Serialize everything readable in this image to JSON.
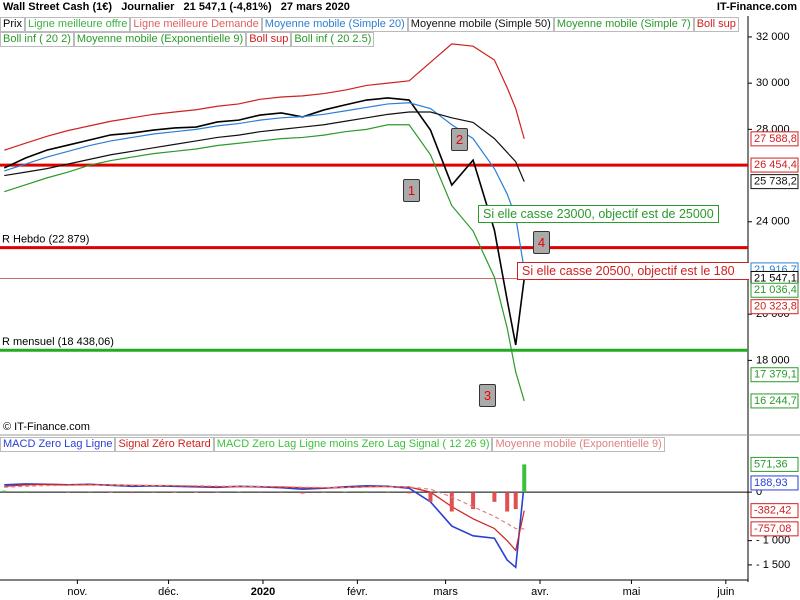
{
  "header": {
    "instrument": "Wall Street Cash (1€)",
    "period": "Journalier",
    "price": "21 547,1 (-4,81%)",
    "date": "27 mars 2020",
    "site": "IT-Finance.com"
  },
  "legend_extra": [
    {
      "name": "Ligne meilleure offre",
      "color": "#3cb043"
    },
    {
      "name": "Ligne meilleure Demande",
      "color": "#e06060"
    },
    {
      "name": "Moyenne mobile (Simple 7)",
      "color": "#2a9a2a"
    },
    {
      "name": "Boll inf ( 20 2)",
      "color": "#2a9a2a"
    },
    {
      "name": "Moyenne mobile (Exponentielle 9)",
      "color": "#2a9a2a"
    },
    {
      "name": "Boll sup",
      "color": "#d02020"
    }
  ],
  "annotations": [
    "1",
    "2",
    "3",
    "4",
    "Si elle casse 23000, objectif est de 25000",
    "Si elle casse 20500, objectif est le 180"
  ],
  "copyright": "© IT-Finance.com",
  "chart_data": [
    {
      "type": "line",
      "log": false,
      "grid": false,
      "x": [
        1,
        2,
        3,
        4,
        5,
        6,
        7,
        8,
        9,
        10,
        11,
        12,
        13,
        14,
        15,
        16,
        17,
        18,
        19,
        20,
        21,
        22,
        23,
        24,
        24.6,
        25,
        25.4
      ],
      "xlim": [
        0.8,
        35.9
      ],
      "ylim": [
        15420,
        32820
      ],
      "yticks": [
        {
          "value": 18000,
          "label": "18 000"
        },
        {
          "value": 20000,
          "label": "20 000"
        },
        {
          "value": 24000,
          "label": "24 000"
        },
        {
          "value": 28000,
          "label": "28 000"
        },
        {
          "value": 30000,
          "label": "30 000"
        },
        {
          "value": 32000,
          "label": "32 000"
        }
      ],
      "series": [
        {
          "name": "Prix",
          "color": "#000000",
          "values": [
            26330,
            26760,
            27100,
            27320,
            27540,
            27760,
            27840,
            27970,
            28060,
            28100,
            28320,
            28400,
            28620,
            28710,
            28540,
            28840,
            29060,
            29270,
            29360,
            29270,
            27970,
            25590,
            26670,
            23640,
            20610,
            18670,
            21547.1
          ]
        },
        {
          "name": "Moyenne mobile (Simple 20)",
          "color": "#2a7fd4",
          "values": [
            26200,
            26500,
            26800,
            27050,
            27300,
            27500,
            27650,
            27800,
            27900,
            28000,
            28150,
            28250,
            28400,
            28500,
            28550,
            28650,
            28800,
            28950,
            29100,
            29150,
            28900,
            28200,
            27600,
            26300,
            25200,
            24200,
            21916.7
          ]
        },
        {
          "name": "Moyenne mobile (Simple 50)",
          "color": "#111111",
          "values": [
            26000,
            26150,
            26300,
            26500,
            26700,
            26900,
            27050,
            27200,
            27350,
            27500,
            27650,
            27750,
            27900,
            28000,
            28100,
            28200,
            28350,
            28500,
            28650,
            28750,
            28750,
            28500,
            28300,
            27600,
            27000,
            26600,
            25738.2
          ]
        },
        {
          "name": "Boll sup",
          "color": "#d02020",
          "values": [
            27100,
            27400,
            27700,
            27950,
            28150,
            28350,
            28500,
            28650,
            28750,
            28850,
            29000,
            29100,
            29300,
            29400,
            29450,
            29550,
            29700,
            29900,
            30000,
            30100,
            30900,
            31700,
            31600,
            31000,
            29800,
            28900,
            27588.8
          ]
        },
        {
          "name": "Boll inf ( 20 2.5)",
          "color": "#2a9a2a",
          "values": [
            25300,
            25600,
            25900,
            26150,
            26450,
            26650,
            26800,
            26950,
            27050,
            27150,
            27300,
            27400,
            27500,
            27600,
            27650,
            27750,
            27900,
            28000,
            28200,
            28200,
            26900,
            24700,
            23600,
            21600,
            19400,
            17500,
            16244.7
          ]
        }
      ],
      "levels": [
        {
          "label": "R mensuel (18 438,06)",
          "value": 18438.06,
          "color": "#22aa22",
          "style": "thick"
        },
        {
          "label": "R Hebdo (22 879)",
          "value": 22879,
          "color": "#e00000",
          "style": "thick"
        },
        {
          "value": 26454.4,
          "color": "#e00000",
          "style": "thick"
        },
        {
          "value": 21547.1,
          "color": "#c87070",
          "style": "thin"
        }
      ],
      "price_labels": [
        {
          "value": 27588.8,
          "label": "27 588,8",
          "color": "#d02020"
        },
        {
          "value": 26454.4,
          "label": "26 454,4",
          "color": "#d02020"
        },
        {
          "value": 25738.2,
          "label": "25 738,2",
          "color": "#111111"
        },
        {
          "value": 21916.7,
          "label": "21 916,7",
          "color": "#2a7fd4"
        },
        {
          "value": 21547.1,
          "label": "21 547,1",
          "color": "#000000"
        },
        {
          "value": 21036.4,
          "label": "21 036,4",
          "color": "#2a9a2a"
        },
        {
          "value": 20323.8,
          "label": "20 323,8",
          "color": "#d02020"
        },
        {
          "value": 17379.1,
          "label": "17 379,1",
          "color": "#2a9a2a"
        },
        {
          "value": 16244.7,
          "label": "16 244,7",
          "color": "#2a9a2a"
        }
      ]
    },
    {
      "type": "macd",
      "grid": false,
      "x": [
        1,
        2,
        3,
        4,
        5,
        6,
        7,
        8,
        9,
        10,
        11,
        12,
        13,
        14,
        15,
        16,
        17,
        18,
        19,
        20,
        21,
        22,
        23,
        24,
        24.6,
        25,
        25.4
      ],
      "xlim": [
        0.8,
        35.9
      ],
      "xticks": [
        {
          "value": 4.43,
          "label": "nov."
        },
        {
          "value": 8.71,
          "label": "déc."
        },
        {
          "value": 13.14,
          "label": "2020"
        },
        {
          "value": 17.57,
          "label": "févr."
        },
        {
          "value": 21.71,
          "label": "mars"
        },
        {
          "value": 26.14,
          "label": "avr."
        },
        {
          "value": 30.43,
          "label": "mai"
        },
        {
          "value": 34.86,
          "label": "juin"
        }
      ],
      "ylim": [
        -1811,
        868
      ],
      "yticks": [
        0,
        {
          "value": -1000,
          "label": "- 1 000"
        },
        {
          "value": -1500,
          "label": "- 1 500"
        }
      ],
      "series": [
        {
          "name": "MACD Zero Lag Ligne",
          "color": "#2a3fd4",
          "kind": "line",
          "values": [
            150,
            170,
            160,
            150,
            160,
            140,
            120,
            130,
            120,
            110,
            100,
            120,
            110,
            90,
            60,
            80,
            110,
            130,
            120,
            80,
            -200,
            -700,
            -900,
            -950,
            -1400,
            -1550,
            188.93
          ]
        },
        {
          "name": "Signal Zéro Retard",
          "color": "#d02020",
          "kind": "line",
          "values": [
            120,
            150,
            160,
            155,
            155,
            150,
            140,
            135,
            130,
            120,
            110,
            112,
            112,
            105,
            90,
            85,
            95,
            110,
            115,
            105,
            0,
            -300,
            -550,
            -750,
            -1000,
            -1200,
            -382.42
          ]
        },
        {
          "name": "MACD Zero Lag Ligne moins Zero Lag Signal ( 12 26 9)",
          "color": "#3cc03c",
          "neg_color": "#e05050",
          "kind": "bar",
          "values": [
            30,
            20,
            0,
            -5,
            5,
            -10,
            -20,
            -5,
            -10,
            -10,
            -10,
            8,
            -2,
            -15,
            -30,
            -5,
            15,
            20,
            5,
            -25,
            -200,
            -400,
            -350,
            -200,
            -400,
            -350,
            571.36
          ]
        },
        {
          "name": "Moyenne mobile (Exponentielle 9)",
          "color": "#e08080",
          "kind": "dash",
          "values": [
            100,
            120,
            135,
            140,
            145,
            145,
            140,
            138,
            135,
            130,
            122,
            120,
            118,
            112,
            100,
            95,
            97,
            105,
            110,
            105,
            60,
            -100,
            -300,
            -500,
            -650,
            -750,
            -757.08
          ]
        }
      ],
      "price_labels": [
        {
          "value": 571.36,
          "label": "571,36",
          "color": "#2a9a2a"
        },
        {
          "value": 188.93,
          "label": "188,93",
          "color": "#2a3fd4"
        },
        {
          "value": -382.42,
          "label": "-382,42",
          "color": "#d02020"
        },
        {
          "value": -757.08,
          "label": "-757,08",
          "color": "#d02020"
        }
      ]
    }
  ]
}
